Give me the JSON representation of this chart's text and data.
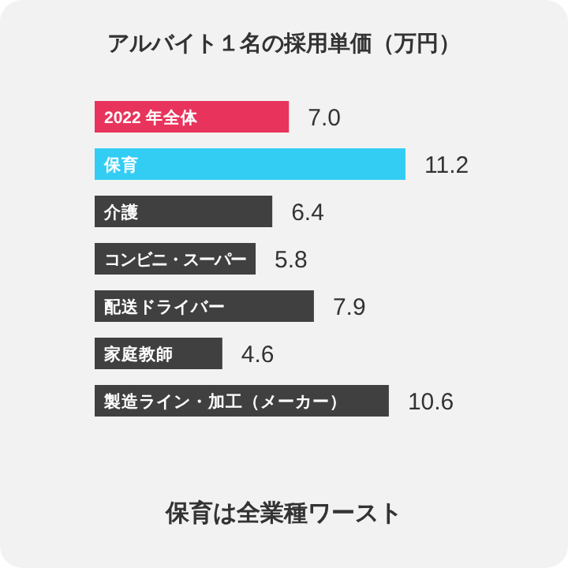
{
  "chart_data": {
    "type": "bar",
    "orientation": "horizontal",
    "title": "アルバイト１名の採用単価（万円）",
    "categories": [
      "2022 年全体",
      "保育",
      "介護",
      "コンビニ・スーパー",
      "配送ドライバー",
      "家庭教師",
      "製造ライン・加工（メーカー）"
    ],
    "values": [
      7.0,
      11.2,
      6.4,
      5.8,
      7.9,
      4.6,
      10.6
    ],
    "value_labels": [
      "7.0",
      "11.2",
      "6.4",
      "5.8",
      "7.9",
      "4.6",
      "10.6"
    ],
    "colors": [
      "#e8345c",
      "#33cdf4",
      "#404040",
      "#404040",
      "#404040",
      "#404040",
      "#404040"
    ],
    "annotations": [
      "保育は全業種ワースト"
    ]
  }
}
